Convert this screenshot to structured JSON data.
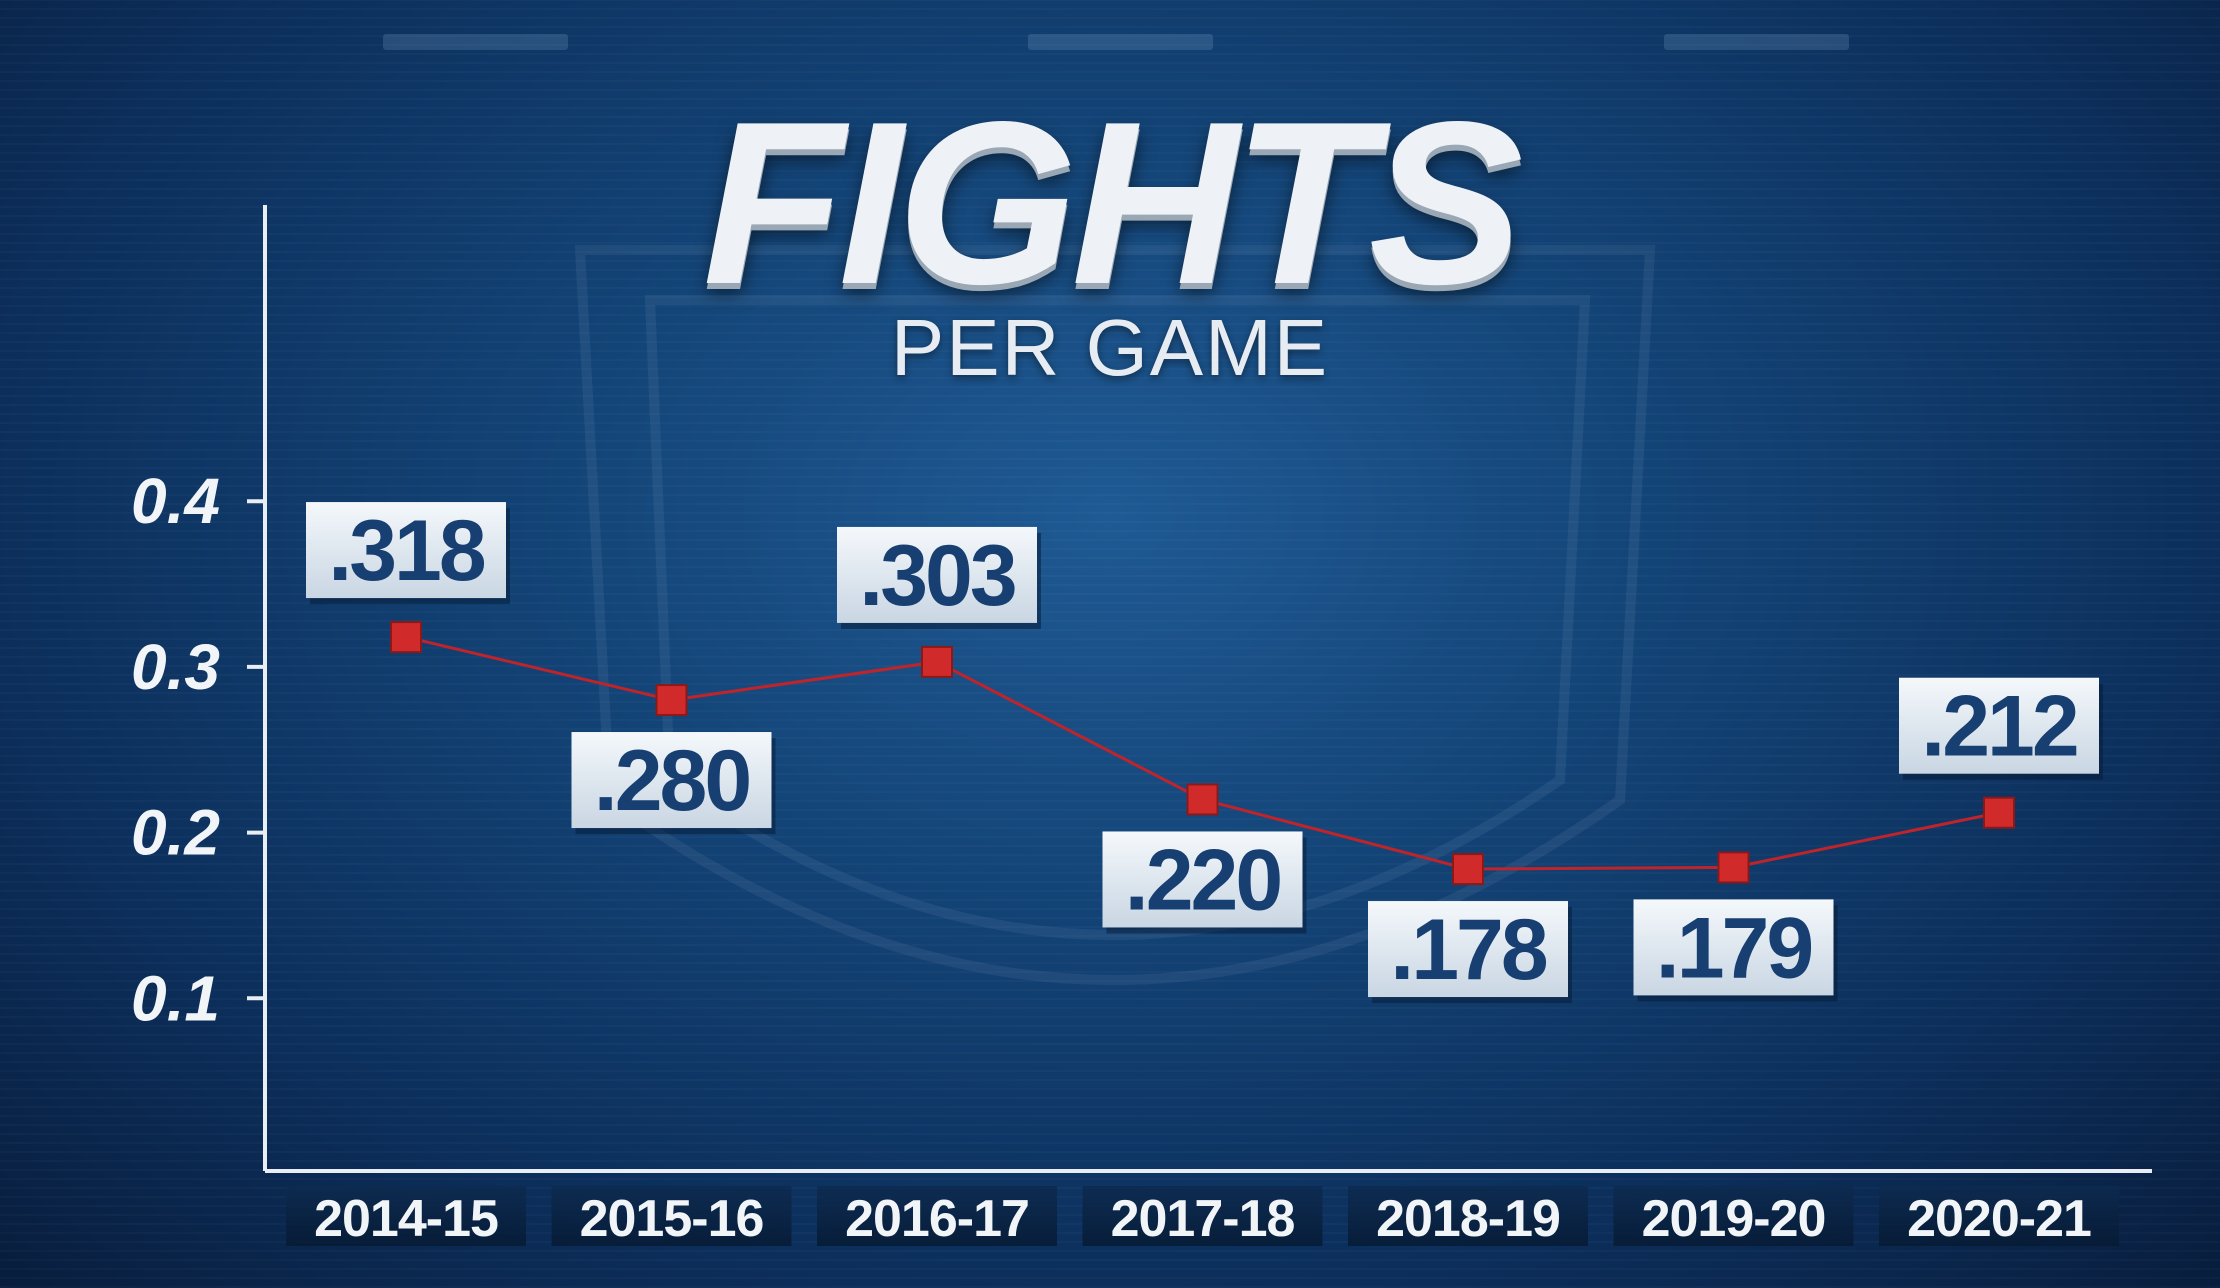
{
  "graphic": {
    "title": "FIGHTS",
    "subtitle": "PER GAME"
  },
  "colors": {
    "background": "#134477",
    "line": "#c0242b",
    "marker": "#d02a2a",
    "label_box": "#dde6ef",
    "label_text": "#173f72",
    "axis": "#e8eef4"
  },
  "chart_data": {
    "type": "line",
    "title": "FIGHTS",
    "subtitle": "PER GAME",
    "xlabel": "",
    "ylabel": "",
    "categories": [
      "2014-15",
      "2015-16",
      "2016-17",
      "2017-18",
      "2018-19",
      "2019-20",
      "2020-21"
    ],
    "y_ticks": [
      "0.4",
      "0.3",
      "0.2",
      "0.1"
    ],
    "ylim": [
      0,
      0.46
    ],
    "grid": false,
    "series": [
      {
        "values": [
          0.318,
          0.28,
          0.303,
          0.22,
          0.178,
          0.179,
          0.212
        ],
        "data_labels": [
          ".318",
          ".280",
          ".303",
          ".220",
          ".178",
          ".179",
          ".212"
        ],
        "label_side": [
          "above",
          "below",
          "above",
          "below",
          "below",
          "below",
          "above"
        ]
      }
    ]
  }
}
